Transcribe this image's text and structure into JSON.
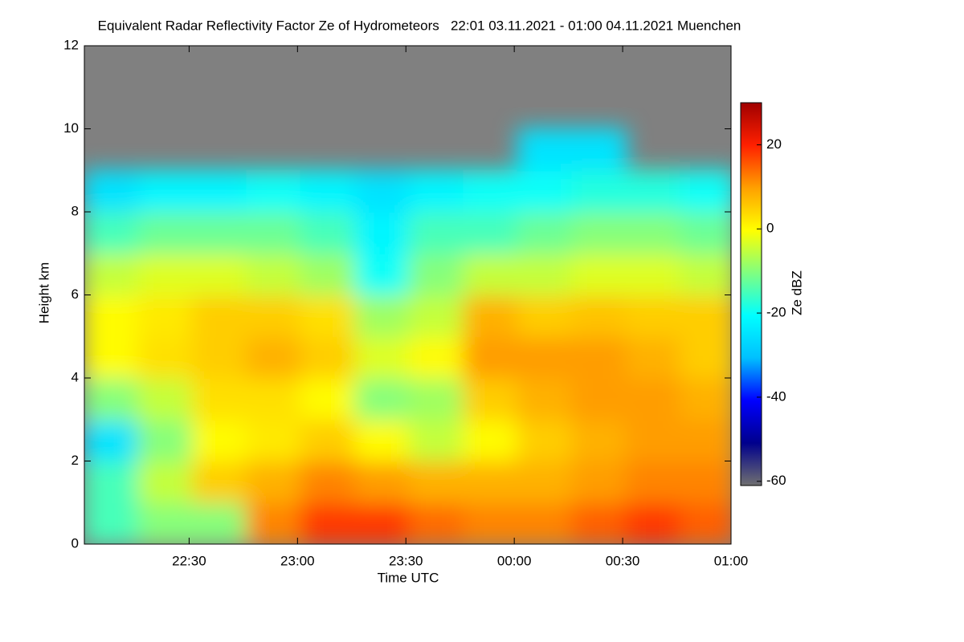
{
  "chart_data": {
    "type": "heatmap",
    "title": "Equivalent Radar Reflectivity Factor Ze of Hydrometeors   22:01 03.11.2021 - 01:00 04.11.2021 Muenchen",
    "x_label": "Time UTC",
    "y_label": "Height km",
    "colorbar_label": "Ze dBZ",
    "xlim": [
      1,
      180
    ],
    "ylim": [
      0,
      12
    ],
    "xticks": [
      {
        "value": 30,
        "label": "22:30"
      },
      {
        "value": 60,
        "label": "23:00"
      },
      {
        "value": 90,
        "label": "23:30"
      },
      {
        "value": 120,
        "label": "00:00"
      },
      {
        "value": 150,
        "label": "00:30"
      },
      {
        "value": 180,
        "label": "01:00"
      }
    ],
    "yticks": [
      0,
      2,
      4,
      6,
      8,
      10,
      12
    ],
    "x_edges": [
      1,
      16,
      31,
      46,
      61,
      76,
      91,
      106,
      121,
      136,
      151,
      166,
      181
    ],
    "y_edges": [
      0,
      1,
      2,
      3,
      4,
      5,
      6,
      7,
      8,
      9,
      10,
      11,
      12
    ],
    "values": [
      [
        -15,
        -10,
        -10,
        12,
        18,
        18,
        14,
        12,
        12,
        15,
        18,
        15
      ],
      [
        -15,
        -5,
        5,
        8,
        12,
        10,
        8,
        8,
        8,
        10,
        12,
        12
      ],
      [
        -25,
        -10,
        0,
        2,
        5,
        0,
        -5,
        0,
        5,
        8,
        10,
        10
      ],
      [
        -10,
        -5,
        3,
        3,
        0,
        -10,
        -8,
        5,
        8,
        10,
        10,
        8
      ],
      [
        0,
        3,
        5,
        8,
        5,
        -3,
        0,
        10,
        10,
        10,
        8,
        5
      ],
      [
        0,
        2,
        5,
        5,
        3,
        -8,
        -5,
        8,
        5,
        6,
        5,
        5
      ],
      [
        -5,
        -3,
        -3,
        -5,
        -8,
        -20,
        -10,
        -5,
        -5,
        -3,
        -3,
        -5
      ],
      [
        -15,
        -12,
        -12,
        -12,
        -15,
        -22,
        -15,
        -15,
        -12,
        -10,
        -10,
        -12
      ],
      [
        -25,
        -22,
        -22,
        -20,
        -22,
        -25,
        -22,
        -20,
        -20,
        -18,
        -18,
        -20
      ],
      [
        null,
        null,
        null,
        null,
        null,
        null,
        null,
        null,
        -25,
        -25,
        null,
        null
      ],
      [
        null,
        null,
        null,
        null,
        null,
        null,
        null,
        null,
        null,
        null,
        null,
        null
      ],
      [
        null,
        null,
        null,
        null,
        null,
        null,
        null,
        null,
        null,
        null,
        null,
        null
      ]
    ],
    "clim": [
      -61,
      30
    ],
    "cticks": [
      -60,
      -40,
      -20,
      0,
      20
    ],
    "colormap": [
      "#707070",
      "#00008c",
      "#0000ff",
      "#00c0ff",
      "#00ffff",
      "#80ff80",
      "#ffff00",
      "#ffa000",
      "#ff2000",
      "#a00000"
    ],
    "nodata_color": "#808080"
  }
}
